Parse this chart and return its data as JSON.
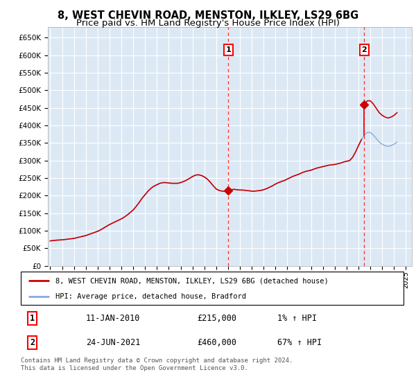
{
  "title": "8, WEST CHEVIN ROAD, MENSTON, ILKLEY, LS29 6BG",
  "subtitle": "Price paid vs. HM Land Registry's House Price Index (HPI)",
  "title_fontsize": 10.5,
  "subtitle_fontsize": 9.5,
  "plot_bg_color": "#dce9f5",
  "grid_color": "#ffffff",
  "ylim": [
    0,
    680000
  ],
  "yticks": [
    0,
    50000,
    100000,
    150000,
    200000,
    250000,
    300000,
    350000,
    400000,
    450000,
    500000,
    550000,
    600000,
    650000
  ],
  "ytick_labels": [
    "£0",
    "£50K",
    "£100K",
    "£150K",
    "£200K",
    "£250K",
    "£300K",
    "£350K",
    "£400K",
    "£450K",
    "£500K",
    "£550K",
    "£600K",
    "£650K"
  ],
  "xlim_start": 1994.8,
  "xlim_end": 2025.5,
  "xtick_years": [
    1995,
    1996,
    1997,
    1998,
    1999,
    2000,
    2001,
    2002,
    2003,
    2004,
    2005,
    2006,
    2007,
    2008,
    2009,
    2010,
    2011,
    2012,
    2013,
    2014,
    2015,
    2016,
    2017,
    2018,
    2019,
    2020,
    2021,
    2022,
    2023,
    2024,
    2025
  ],
  "sale1_x": 2010.03,
  "sale1_y": 215000,
  "sale2_x": 2021.48,
  "sale2_y": 460000,
  "sold_line_color": "#cc0000",
  "hpi_line_color": "#88aadd",
  "legend_entry1": "8, WEST CHEVIN ROAD, MENSTON, ILKLEY, LS29 6BG (detached house)",
  "legend_entry2": "HPI: Average price, detached house, Bradford",
  "annotation1_date": "11-JAN-2010",
  "annotation1_price": "£215,000",
  "annotation1_hpi": "1% ↑ HPI",
  "annotation2_date": "24-JUN-2021",
  "annotation2_price": "£460,000",
  "annotation2_hpi": "67% ↑ HPI",
  "footer_text": "Contains HM Land Registry data © Crown copyright and database right 2024.\nThis data is licensed under the Open Government Licence v3.0.",
  "hpi_data_x": [
    1995.0,
    1995.25,
    1995.5,
    1995.75,
    1996.0,
    1996.25,
    1996.5,
    1996.75,
    1997.0,
    1997.25,
    1997.5,
    1997.75,
    1998.0,
    1998.25,
    1998.5,
    1998.75,
    1999.0,
    1999.25,
    1999.5,
    1999.75,
    2000.0,
    2000.25,
    2000.5,
    2000.75,
    2001.0,
    2001.25,
    2001.5,
    2001.75,
    2002.0,
    2002.25,
    2002.5,
    2002.75,
    2003.0,
    2003.25,
    2003.5,
    2003.75,
    2004.0,
    2004.25,
    2004.5,
    2004.75,
    2005.0,
    2005.25,
    2005.5,
    2005.75,
    2006.0,
    2006.25,
    2006.5,
    2006.75,
    2007.0,
    2007.25,
    2007.5,
    2007.75,
    2008.0,
    2008.25,
    2008.5,
    2008.75,
    2009.0,
    2009.25,
    2009.5,
    2009.75,
    2010.0,
    2010.25,
    2010.5,
    2010.75,
    2011.0,
    2011.25,
    2011.5,
    2011.75,
    2012.0,
    2012.25,
    2012.5,
    2012.75,
    2013.0,
    2013.25,
    2013.5,
    2013.75,
    2014.0,
    2014.25,
    2014.5,
    2014.75,
    2015.0,
    2015.25,
    2015.5,
    2015.75,
    2016.0,
    2016.25,
    2016.5,
    2016.75,
    2017.0,
    2017.25,
    2017.5,
    2017.75,
    2018.0,
    2018.25,
    2018.5,
    2018.75,
    2019.0,
    2019.25,
    2019.5,
    2019.75,
    2020.0,
    2020.25,
    2020.5,
    2020.75,
    2021.0,
    2021.25,
    2021.5,
    2021.75,
    2022.0,
    2022.25,
    2022.5,
    2022.75,
    2023.0,
    2023.25,
    2023.5,
    2023.75,
    2024.0,
    2024.25
  ],
  "hpi_data_y": [
    70000,
    71000,
    72000,
    72500,
    73000,
    74000,
    75000,
    76000,
    77000,
    79000,
    81000,
    83000,
    85000,
    88000,
    91000,
    94000,
    97000,
    101000,
    106000,
    111000,
    116000,
    120000,
    124000,
    128000,
    132000,
    137000,
    143000,
    150000,
    157000,
    167000,
    178000,
    190000,
    200000,
    210000,
    218000,
    224000,
    228000,
    232000,
    234000,
    234000,
    233000,
    232000,
    232000,
    232000,
    234000,
    237000,
    241000,
    246000,
    251000,
    255000,
    256000,
    254000,
    250000,
    244000,
    235000,
    225000,
    216000,
    212000,
    210000,
    210000,
    212000,
    214000,
    215000,
    214000,
    213000,
    213000,
    212000,
    211000,
    210000,
    210000,
    211000,
    212000,
    214000,
    217000,
    221000,
    225000,
    230000,
    234000,
    237000,
    240000,
    244000,
    248000,
    252000,
    255000,
    258000,
    262000,
    265000,
    267000,
    269000,
    272000,
    275000,
    277000,
    279000,
    281000,
    283000,
    284000,
    285000,
    287000,
    289000,
    292000,
    294000,
    296000,
    305000,
    320000,
    338000,
    355000,
    368000,
    375000,
    375000,
    368000,
    358000,
    348000,
    342000,
    338000,
    336000,
    338000,
    342000,
    348000
  ]
}
